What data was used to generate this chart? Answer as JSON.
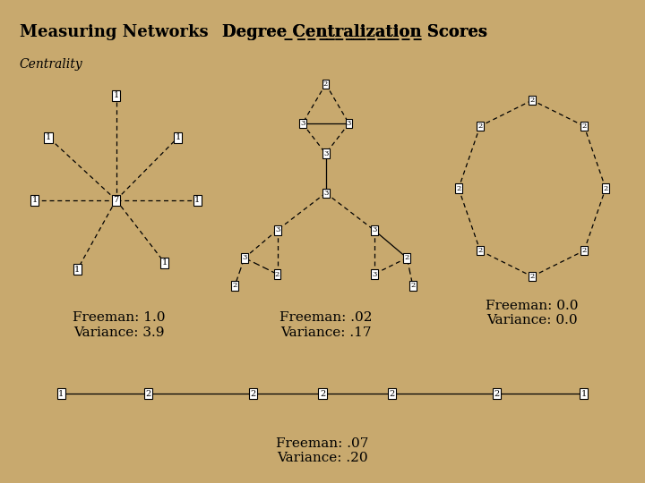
{
  "bg_color": "#C8A96E",
  "panel_bg": "#FFFFFF",
  "title_left": "Measuring Networks",
  "subtitle_left": "Centrality",
  "title_right": "Degree Centralization Scores",
  "graph1_label": "Freeman: 1.0\nVariance: 3.9",
  "graph2_label": "Freeman: .02\nVariance: .17",
  "graph3_label": "Freeman: 0.0\nVariance: 0.0",
  "graph4_label": "Freeman: .07\nVariance: .20",
  "line_color": "#000000",
  "node_box_color": "#000000"
}
